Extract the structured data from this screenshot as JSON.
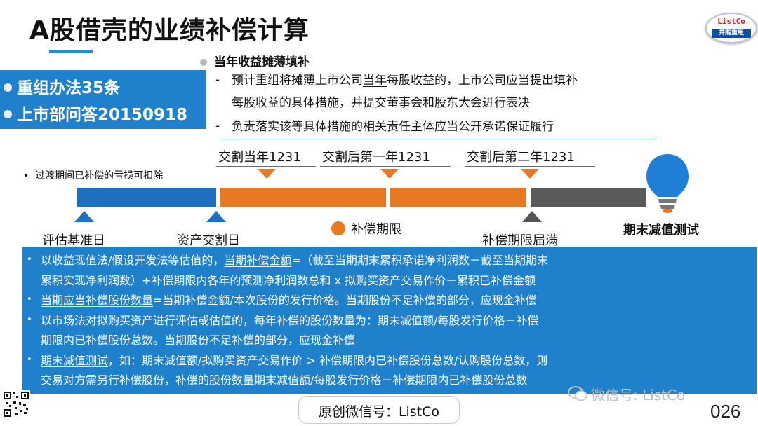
{
  "slide": {
    "title": "A股借壳的业绩补偿计算",
    "logo": {
      "top_text": "ListCo",
      "bottom_text": "并购重组"
    },
    "basis": {
      "items": [
        "重组办法35条",
        "上市部问答20150918"
      ]
    },
    "dilution": {
      "title": "当年收益摊薄填补",
      "dash": "-",
      "lines": [
        {
          "prefix": "预计重组将摊薄上市公司",
          "underlined": "当年",
          "suffix": "每股收益的，上市公司应当提出填补"
        },
        {
          "text": "每股收益的具体措施，并提交董事会和股东大会进行表决"
        },
        {
          "text": "负责落实该等具体措施的相关责任主体应当公开承诺保证履行"
        }
      ]
    },
    "timeline": {
      "transition_note": "过渡期间已补偿的亏损可扣除",
      "top_dates": [
        "交割当年1231",
        "交割后第一年1231",
        "交割后第二年1231"
      ],
      "bottom_labels": [
        "评估基准日",
        "资产交割日",
        "补偿期限届满"
      ],
      "legend": "补偿期限",
      "final_test": "期末减值测试"
    },
    "rules": {
      "bullet": "•",
      "lines": [
        {
          "bullet": true,
          "parts": [
            {
              "t": "以收益现值法/假设开发法等估值的，"
            },
            {
              "t": "当期补偿金额",
              "u": true
            },
            {
              "t": "=（截至当期期末累积承诺净利润数－截至当期期末"
            }
          ]
        },
        {
          "bullet": false,
          "parts": [
            {
              "t": "累积实现净利润数）÷补偿期限内各年的预测净利润数总和 x 拟购买资产交易作价－累积已补偿金额"
            }
          ]
        },
        {
          "bullet": true,
          "parts": [
            {
              "t": "当期应当补偿股份数量",
              "u": true
            },
            {
              "t": "=当期补偿金额/本次股份的发行价格。当期股份不足补偿的部分，应现金补偿"
            }
          ]
        },
        {
          "bullet": true,
          "parts": [
            {
              "t": "以市场法对拟购买资产进行评估或估值的，每年补偿的股份数量为：期末减值额/每股发行价格－补偿"
            }
          ]
        },
        {
          "bullet": false,
          "parts": [
            {
              "t": "期限内已补偿股份总数。当期股份不足补偿的部分，应现金补偿"
            }
          ]
        },
        {
          "bullet": true,
          "parts": [
            {
              "t": "期末减值测试",
              "u": true
            },
            {
              "t": "，如：期末减值额/拟购买资产交易作价 > 补偿期限内已补偿股份总数/认购股份总数，则"
            }
          ]
        },
        {
          "bullet": false,
          "parts": [
            {
              "t": "交易对方需另行补偿股份，补偿的股份数量期末减值额/每股发行价格－补偿期限内已补偿股份总数"
            }
          ]
        }
      ]
    },
    "footer": {
      "account": "原创微信号：ListCo",
      "watermark": "微信号: ListCo",
      "page_number": "026"
    },
    "colors": {
      "blue": "#1f80cc",
      "orange": "#e87922",
      "gray": "#555555",
      "bulb": "#1f7fd6"
    }
  }
}
